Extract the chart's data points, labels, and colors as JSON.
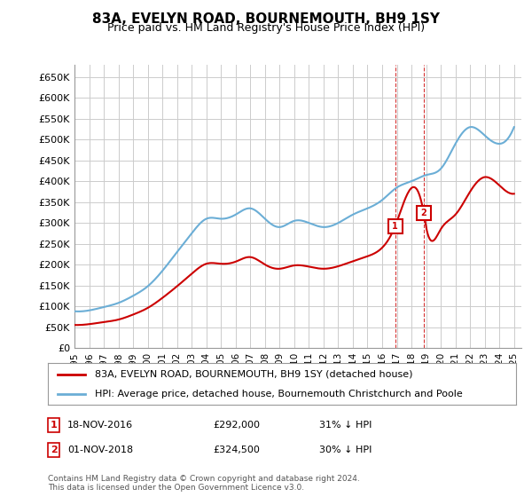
{
  "title": "83A, EVELYN ROAD, BOURNEMOUTH, BH9 1SY",
  "subtitle": "Price paid vs. HM Land Registry's House Price Index (HPI)",
  "ylabel_ticks": [
    "£0",
    "£50K",
    "£100K",
    "£150K",
    "£200K",
    "£250K",
    "£300K",
    "£350K",
    "£400K",
    "£450K",
    "£500K",
    "£550K",
    "£600K",
    "£650K"
  ],
  "ylim": [
    0,
    680000
  ],
  "xlim_start": 1995.0,
  "xlim_end": 2025.5,
  "hpi_color": "#6baed6",
  "price_color": "#cc0000",
  "sale1_date": 2016.88,
  "sale1_price": 292000,
  "sale2_date": 2018.83,
  "sale2_price": 324500,
  "legend_entry1": "83A, EVELYN ROAD, BOURNEMOUTH, BH9 1SY (detached house)",
  "legend_entry2": "HPI: Average price, detached house, Bournemouth Christchurch and Poole",
  "annotation1_label": "1",
  "annotation1_date": "18-NOV-2016",
  "annotation1_price": "£292,000",
  "annotation1_hpi": "31% ↓ HPI",
  "annotation2_label": "2",
  "annotation2_date": "01-NOV-2018",
  "annotation2_price": "£324,500",
  "annotation2_hpi": "30% ↓ HPI",
  "footnote": "Contains HM Land Registry data © Crown copyright and database right 2024.\nThis data is licensed under the Open Government Licence v3.0.",
  "background_color": "#ffffff",
  "grid_color": "#cccccc"
}
